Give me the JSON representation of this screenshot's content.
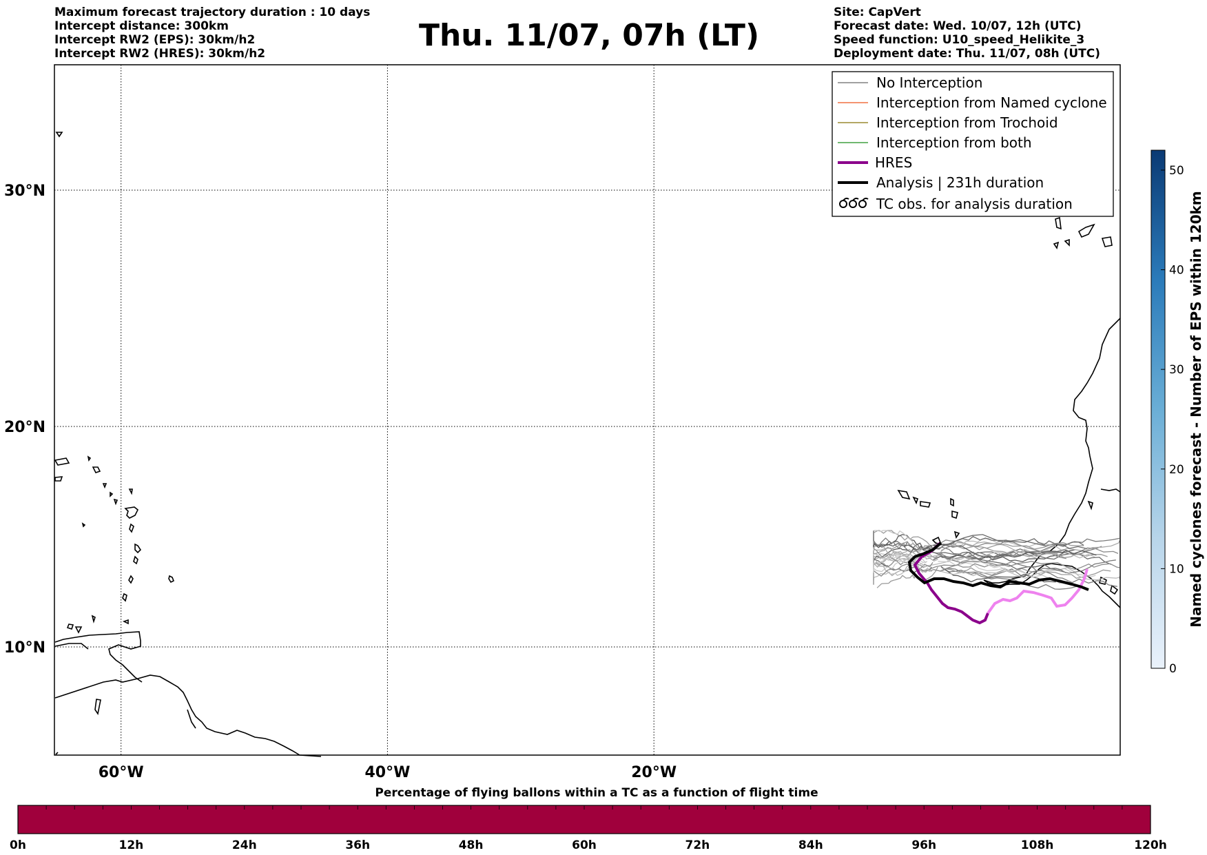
{
  "header_left": [
    "Maximum forecast trajectory duration : 10 days",
    "Intercept distance: 300km",
    "Intercept RW2 (EPS):  30km/h2",
    "Intercept RW2 (HRES): 30km/h2"
  ],
  "header_right": [
    "Site: CapVert",
    "Forecast date: Wed. 10/07, 12h (UTC)",
    "Speed function: U10_speed_Helikite_3",
    "Deployment date: Thu. 11/07, 08h (UTC)"
  ],
  "title": "Thu. 11/07, 07h (LT)",
  "map": {
    "lon_range": [
      -65,
      15
    ],
    "lat_range": [
      5.5,
      35
    ],
    "lon_ticks": [
      {
        "value": -60,
        "label": "60°W"
      },
      {
        "value": -40,
        "label": "40°W"
      },
      {
        "value": -20,
        "label": "20°W"
      }
    ],
    "lat_ticks": [
      {
        "value": 10,
        "label": "10°N"
      },
      {
        "value": 20,
        "label": "20°N"
      },
      {
        "value": 30,
        "label": "30°N"
      }
    ],
    "grid": true
  },
  "legend": {
    "placement": "top-right",
    "items": [
      {
        "label": "No Interception",
        "color": "#808080",
        "style": "thin"
      },
      {
        "label": "Interception from Named cyclone",
        "color": "#f07040",
        "style": "thin"
      },
      {
        "label": "Interception from Trochoid",
        "color": "#9a8a30",
        "style": "thin"
      },
      {
        "label": "Interception from both",
        "color": "#40a040",
        "style": "thin"
      },
      {
        "label": "HRES",
        "color": "#8b008b",
        "style": "thick"
      },
      {
        "label": "Analysis | 231h duration",
        "color": "#000000",
        "style": "thick"
      },
      {
        "label": "TC obs. for analysis duration",
        "color": "#000000",
        "style": "cyclone"
      }
    ]
  },
  "colorbar_right": {
    "title": "Named cyclones forecast - Number of EPS within 120km",
    "range": [
      0,
      52
    ],
    "ticks": [
      "0",
      "10",
      "20",
      "30",
      "40",
      "50"
    ],
    "color_low": "#eaf2fb",
    "color_high": "#0b3a74"
  },
  "colorbar_bottom": {
    "title": "Percentage of flying ballons within a TC as a function of flight time",
    "ticks": [
      "0h",
      "12h",
      "24h",
      "36h",
      "48h",
      "60h",
      "72h",
      "84h",
      "96h",
      "108h",
      "120h"
    ],
    "fill_color": "#a0003c"
  },
  "colors": {
    "no_interception": "#808080",
    "hres": "#8b008b",
    "hres_late": "#ee82ee",
    "analysis": "#000000"
  }
}
